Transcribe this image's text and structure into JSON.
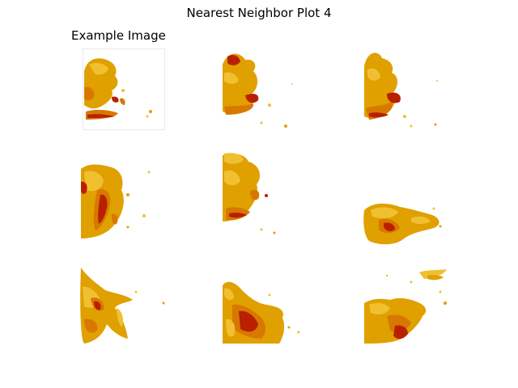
{
  "figure": {
    "title": "Nearest Neighbor Plot 4",
    "example_title": "Example Image"
  },
  "palette": {
    "light": "#f0c030",
    "mid": "#e0a000",
    "orange": "#d87800",
    "dark": "#b82000"
  },
  "tiles": [
    {
      "name": "example-image",
      "row": 0,
      "col": 0
    },
    {
      "name": "neighbor-1",
      "row": 0,
      "col": 1
    },
    {
      "name": "neighbor-2",
      "row": 0,
      "col": 2
    },
    {
      "name": "neighbor-3",
      "row": 1,
      "col": 0
    },
    {
      "name": "neighbor-4",
      "row": 1,
      "col": 1
    },
    {
      "name": "neighbor-5",
      "row": 1,
      "col": 2
    },
    {
      "name": "neighbor-6",
      "row": 2,
      "col": 0
    },
    {
      "name": "neighbor-7",
      "row": 2,
      "col": 1
    },
    {
      "name": "neighbor-8",
      "row": 2,
      "col": 2
    }
  ]
}
